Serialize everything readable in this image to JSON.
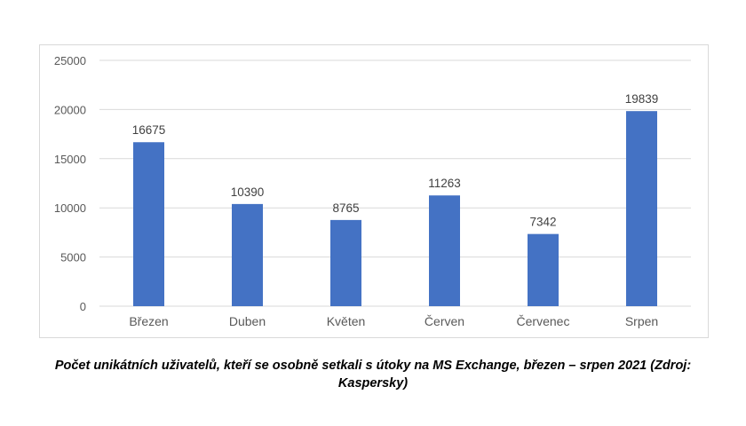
{
  "chart_data": {
    "type": "bar",
    "categories": [
      "Březen",
      "Duben",
      "Květen",
      "Červen",
      "Červenec",
      "Srpen"
    ],
    "values": [
      16675,
      10390,
      8765,
      11263,
      7342,
      19839
    ],
    "data_labels": [
      "16675",
      "10390",
      "8765",
      "11263",
      "7342",
      "19839"
    ],
    "y_ticks": [
      0,
      5000,
      10000,
      15000,
      20000,
      25000
    ],
    "y_tick_labels": [
      "0",
      "5000",
      "10000",
      "15000",
      "20000",
      "25000"
    ],
    "ylim": [
      0,
      25000
    ],
    "grid": true,
    "legend": "none",
    "bar_color": "#4472c4",
    "grid_color": "#d9d9d9",
    "text_color": "#595959"
  },
  "caption": "Počet unikátních uživatelů, kteří se osobně setkali s útoky na MS Exchange, březen – srpen 2021 (Zdroj: Kaspersky)"
}
